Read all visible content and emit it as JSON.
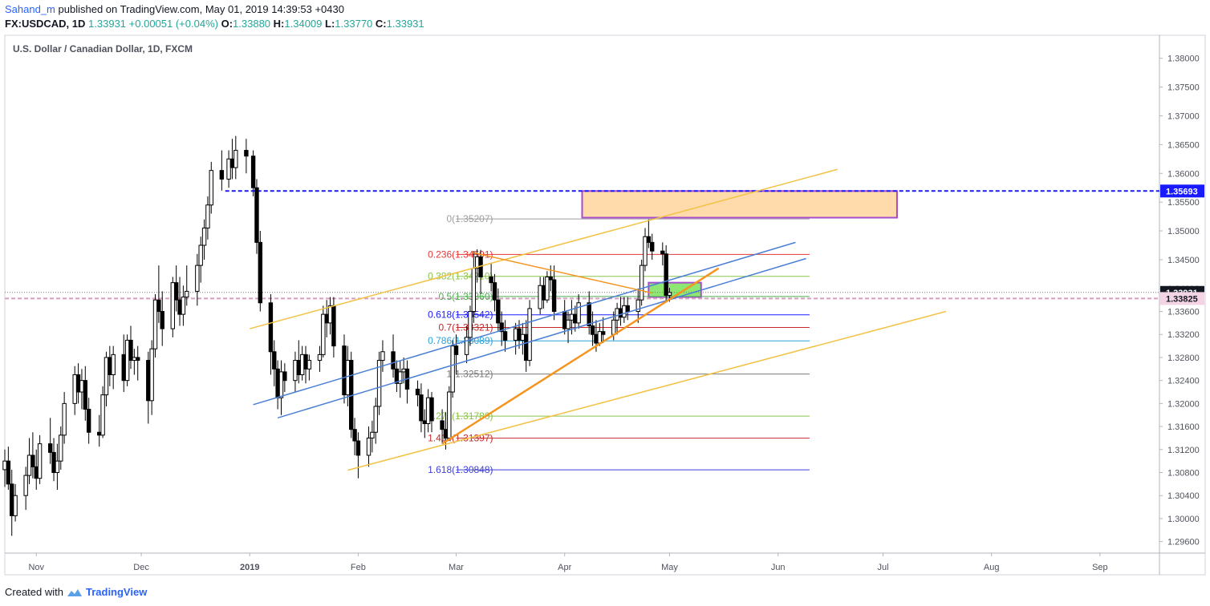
{
  "header": {
    "author": "Sahand_m",
    "published_text": "published on TradingView.com, May 01, 2019 14:39:53 +0430",
    "symbol": "FX:USDCAD, 1D",
    "last": "1.33931",
    "change": "+0.00051 (+0.04%)",
    "o_label": "O:",
    "o": "1.33880",
    "h_label": "H:",
    "h": "1.34009",
    "l_label": "L:",
    "l": "1.33770",
    "c_label": "C:",
    "c": "1.33931"
  },
  "footer": {
    "created_with": "Created with",
    "brand": "TradingView"
  },
  "colors": {
    "up_body": "#ffffff",
    "down_body": "#000000",
    "wick": "#000000",
    "resistance_zone": "#ffd49c",
    "zone_border": "#a64dcc",
    "support_zone": "#7be35a",
    "dashed_blue": "#1a1aff",
    "dashed_pink": "#d6a0c0",
    "channel_blue": "#4a7fd6",
    "channel_yellow": "#f2c244",
    "trend_orange": "#f5941f"
  },
  "chart_data": {
    "type": "candlestick",
    "title": "U.S. Dollar / Canadian Dollar, 1D, FXCM",
    "ylim": [
      1.294,
      1.384
    ],
    "y_ticks": [
      "1.29600",
      "1.30000",
      "1.30400",
      "1.30800",
      "1.31200",
      "1.31600",
      "1.32000",
      "1.32400",
      "1.32800",
      "1.33200",
      "1.33600",
      "1.34000",
      "1.34500",
      "1.35000",
      "1.35500",
      "1.36000",
      "1.36500",
      "1.37000",
      "1.37500",
      "1.38000"
    ],
    "y_tick_values": [
      1.296,
      1.3,
      1.304,
      1.308,
      1.312,
      1.316,
      1.32,
      1.324,
      1.328,
      1.332,
      1.336,
      1.34,
      1.345,
      1.35,
      1.355,
      1.36,
      1.365,
      1.37,
      1.375,
      1.38
    ],
    "x_ticks": [
      {
        "label": "Nov",
        "date": "2018-11-01"
      },
      {
        "label": "Dec",
        "date": "2018-12-01"
      },
      {
        "label": "2019",
        "date": "2019-01-01"
      },
      {
        "label": "Feb",
        "date": "2019-02-01"
      },
      {
        "label": "Mar",
        "date": "2019-03-01"
      },
      {
        "label": "Apr",
        "date": "2019-04-01"
      },
      {
        "label": "May",
        "date": "2019-05-01"
      },
      {
        "label": "Jun",
        "date": "2019-06-01"
      },
      {
        "label": "Jul",
        "date": "2019-07-01"
      },
      {
        "label": "Aug",
        "date": "2019-08-01"
      },
      {
        "label": "Sep",
        "date": "2019-09-01"
      }
    ],
    "x_range": [
      "2018-10-23",
      "2019-09-18"
    ],
    "price_labels": [
      {
        "value": 1.35693,
        "text": "1.35693",
        "bg": "#1a1aff",
        "fg": "#ffffff"
      },
      {
        "value": 1.33931,
        "text": "1.33931",
        "bg": "#131722",
        "fg": "#ffffff"
      },
      {
        "value": 1.33825,
        "text": "1.33825",
        "bg": "#f3d4e4",
        "fg": "#131722"
      }
    ],
    "hlines": [
      {
        "value": 1.35693,
        "style": "dashed",
        "color": "#1a1aff",
        "from": "2018-12-25"
      },
      {
        "value": 1.33825,
        "style": "dashed",
        "color": "#d6a0c0",
        "from": "2018-10-23"
      },
      {
        "value": 1.33931,
        "style": "dotted",
        "color": "#777777",
        "from": "2018-10-23"
      }
    ],
    "fib": {
      "from": "2019-03-01",
      "to": "2019-06-10",
      "levels": [
        {
          "ratio": "0",
          "value": 1.35207,
          "text": "0(1.35207)",
          "color": "#9e9e9e"
        },
        {
          "ratio": "0.236",
          "value": 1.34591,
          "text": "0.236(1.34591)",
          "color": "#e53935"
        },
        {
          "ratio": "0.382",
          "value": 1.3421,
          "text": "0.382(1.34210)",
          "color": "#8bc34a"
        },
        {
          "ratio": "0.5",
          "value": 1.3386,
          "text": "0.5(1.33860)",
          "color": "#4caf50"
        },
        {
          "ratio": "0.618",
          "value": 1.33542,
          "text": "0.618(1.33542)",
          "color": "#1a1aff"
        },
        {
          "ratio": "0.7",
          "value": 1.33321,
          "text": "0.7(1.33321)",
          "color": "#c62828"
        },
        {
          "ratio": "0.786",
          "value": 1.33089,
          "text": "0.786(1.33089)",
          "color": "#29a3d6"
        },
        {
          "ratio": "1",
          "value": 1.32512,
          "text": "1(1.32512)",
          "color": "#7a7a7a"
        },
        {
          "ratio": "1.272",
          "value": 1.3178,
          "text": "1.272(1.31780)",
          "color": "#8bc34a"
        },
        {
          "ratio": "1.414",
          "value": 1.31397,
          "text": "1.414(1.31397)",
          "color": "#c62828"
        },
        {
          "ratio": "1.618",
          "value": 1.30848,
          "text": "1.618(1.30848)",
          "color": "#3f3fd6"
        }
      ]
    },
    "zones": [
      {
        "name": "resistance",
        "x0": "2019-04-06",
        "x1": "2019-07-05",
        "y0": 1.3523,
        "y1": 1.35693,
        "fill": "#ffd49c",
        "border": "#a64dcc"
      },
      {
        "name": "support",
        "x0": "2019-04-25",
        "x1": "2019-05-10",
        "y0": 1.3385,
        "y1": 1.341,
        "fill": "#7be35a",
        "border": "#a64dcc"
      }
    ],
    "trendlines": [
      {
        "color": "#f2c244",
        "width": 1.5,
        "p1": [
          "2019-01-01",
          1.333
        ],
        "p2": [
          "2019-06-18",
          1.3607
        ]
      },
      {
        "color": "#f2c244",
        "width": 1.5,
        "p1": [
          "2019-01-29",
          1.3084
        ],
        "p2": [
          "2019-07-19",
          1.336
        ]
      },
      {
        "color": "#4a7fd6",
        "width": 1.5,
        "p1": [
          "2019-01-02",
          1.3198
        ],
        "p2": [
          "2019-06-06",
          1.348
        ]
      },
      {
        "color": "#4a7fd6",
        "width": 1.5,
        "p1": [
          "2019-01-09",
          1.3175
        ],
        "p2": [
          "2019-06-09",
          1.3452
        ]
      },
      {
        "color": "#f5941f",
        "width": 2.5,
        "p1": [
          "2019-02-25",
          1.313
        ],
        "p2": [
          "2019-05-15",
          1.3435
        ]
      },
      {
        "color": "#f5941f",
        "width": 1.5,
        "p1": [
          "2019-03-06",
          1.3462
        ],
        "p2": [
          "2019-04-26",
          1.3392
        ]
      }
    ],
    "candles": [
      [
        "2018-10-23",
        1.3085,
        1.312,
        1.3055,
        1.31
      ],
      [
        "2018-10-24",
        1.31,
        1.3125,
        1.305,
        1.306
      ],
      [
        "2018-10-25",
        1.306,
        1.3085,
        1.297,
        1.3005
      ],
      [
        "2018-10-26",
        1.3005,
        1.306,
        1.2995,
        1.304
      ],
      [
        "2018-10-29",
        1.304,
        1.309,
        1.3015,
        1.3075
      ],
      [
        "2018-10-30",
        1.3075,
        1.314,
        1.306,
        1.311
      ],
      [
        "2018-10-31",
        1.311,
        1.315,
        1.307,
        1.309
      ],
      [
        "2018-11-01",
        1.309,
        1.312,
        1.305,
        1.307
      ],
      [
        "2018-11-02",
        1.307,
        1.3145,
        1.306,
        1.313
      ],
      [
        "2018-11-05",
        1.313,
        1.3175,
        1.3095,
        1.3115
      ],
      [
        "2018-11-06",
        1.3115,
        1.314,
        1.3065,
        1.308
      ],
      [
        "2018-11-07",
        1.308,
        1.313,
        1.305,
        1.31
      ],
      [
        "2018-11-08",
        1.31,
        1.316,
        1.3085,
        1.3145
      ],
      [
        "2018-11-09",
        1.3145,
        1.322,
        1.313,
        1.32
      ],
      [
        "2018-11-12",
        1.32,
        1.3265,
        1.318,
        1.325
      ],
      [
        "2018-11-13",
        1.325,
        1.327,
        1.32,
        1.322
      ],
      [
        "2018-11-14",
        1.322,
        1.326,
        1.319,
        1.324
      ],
      [
        "2018-11-15",
        1.324,
        1.3265,
        1.317,
        1.319
      ],
      [
        "2018-11-16",
        1.319,
        1.321,
        1.313,
        1.315
      ],
      [
        "2018-11-19",
        1.315,
        1.318,
        1.3125,
        1.3145
      ],
      [
        "2018-11-20",
        1.3145,
        1.323,
        1.314,
        1.3215
      ],
      [
        "2018-11-21",
        1.3215,
        1.329,
        1.3195,
        1.328
      ],
      [
        "2018-11-22",
        1.328,
        1.33,
        1.323,
        1.325
      ],
      [
        "2018-11-23",
        1.325,
        1.33,
        1.3225,
        1.3285
      ],
      [
        "2018-11-26",
        1.3285,
        1.332,
        1.322,
        1.324
      ],
      [
        "2018-11-27",
        1.324,
        1.332,
        1.323,
        1.331
      ],
      [
        "2018-11-28",
        1.331,
        1.3335,
        1.326,
        1.3275
      ],
      [
        "2018-11-29",
        1.3275,
        1.3295,
        1.325,
        1.328
      ],
      [
        "2018-11-30",
        1.328,
        1.33,
        1.324,
        1.3275
      ],
      [
        "2018-12-03",
        1.3275,
        1.329,
        1.3165,
        1.3205
      ],
      [
        "2018-12-04",
        1.3205,
        1.331,
        1.318,
        1.3295
      ],
      [
        "2018-12-05",
        1.3295,
        1.339,
        1.328,
        1.338
      ],
      [
        "2018-12-06",
        1.338,
        1.344,
        1.334,
        1.336
      ],
      [
        "2018-12-07",
        1.336,
        1.3395,
        1.33,
        1.333
      ],
      [
        "2018-12-10",
        1.333,
        1.342,
        1.3315,
        1.341
      ],
      [
        "2018-12-11",
        1.341,
        1.344,
        1.336,
        1.338
      ],
      [
        "2018-12-12",
        1.338,
        1.342,
        1.3335,
        1.3355
      ],
      [
        "2018-12-13",
        1.3355,
        1.3405,
        1.3335,
        1.3385
      ],
      [
        "2018-12-14",
        1.3385,
        1.344,
        1.337,
        1.3395
      ],
      [
        "2018-12-17",
        1.3395,
        1.346,
        1.337,
        1.344
      ],
      [
        "2018-12-18",
        1.344,
        1.349,
        1.341,
        1.3475
      ],
      [
        "2018-12-19",
        1.3475,
        1.352,
        1.345,
        1.3505
      ],
      [
        "2018-12-20",
        1.3505,
        1.356,
        1.3485,
        1.3545
      ],
      [
        "2018-12-21",
        1.3545,
        1.362,
        1.353,
        1.3605
      ],
      [
        "2018-12-24",
        1.3605,
        1.364,
        1.357,
        1.359
      ],
      [
        "2018-12-26",
        1.359,
        1.364,
        1.3575,
        1.3625
      ],
      [
        "2018-12-27",
        1.3625,
        1.366,
        1.359,
        1.361
      ],
      [
        "2018-12-28",
        1.361,
        1.3665,
        1.359,
        1.364
      ],
      [
        "2018-12-31",
        1.364,
        1.366,
        1.36,
        1.363
      ],
      [
        "2019-01-02",
        1.363,
        1.364,
        1.356,
        1.3575
      ],
      [
        "2019-01-03",
        1.3575,
        1.359,
        1.346,
        1.348
      ],
      [
        "2019-01-04",
        1.348,
        1.35,
        1.336,
        1.3375
      ],
      [
        "2019-01-07",
        1.3375,
        1.339,
        1.325,
        1.329
      ],
      [
        "2019-01-08",
        1.329,
        1.331,
        1.323,
        1.326
      ],
      [
        "2019-01-09",
        1.326,
        1.3275,
        1.319,
        1.321
      ],
      [
        "2019-01-10",
        1.321,
        1.3275,
        1.318,
        1.3255
      ],
      [
        "2019-01-11",
        1.3255,
        1.327,
        1.322,
        1.324
      ],
      [
        "2019-01-14",
        1.324,
        1.329,
        1.322,
        1.3275
      ],
      [
        "2019-01-15",
        1.3275,
        1.331,
        1.3235,
        1.325
      ],
      [
        "2019-01-16",
        1.325,
        1.33,
        1.324,
        1.3285
      ],
      [
        "2019-01-17",
        1.3285,
        1.33,
        1.3235,
        1.326
      ],
      [
        "2019-01-18",
        1.326,
        1.3285,
        1.324,
        1.3275
      ],
      [
        "2019-01-21",
        1.3275,
        1.33,
        1.3255,
        1.3285
      ],
      [
        "2019-01-22",
        1.3285,
        1.337,
        1.328,
        1.3355
      ],
      [
        "2019-01-23",
        1.3355,
        1.338,
        1.3315,
        1.334
      ],
      [
        "2019-01-24",
        1.334,
        1.3385,
        1.332,
        1.337
      ],
      [
        "2019-01-25",
        1.337,
        1.3385,
        1.328,
        1.33
      ],
      [
        "2019-01-28",
        1.33,
        1.332,
        1.32,
        1.3215
      ],
      [
        "2019-01-29",
        1.3215,
        1.33,
        1.3195,
        1.3275
      ],
      [
        "2019-01-30",
        1.3275,
        1.329,
        1.314,
        1.3155
      ],
      [
        "2019-01-31",
        1.3155,
        1.3175,
        1.311,
        1.3135
      ],
      [
        "2019-02-01",
        1.3135,
        1.315,
        1.307,
        1.311
      ],
      [
        "2019-02-04",
        1.311,
        1.316,
        1.309,
        1.314
      ],
      [
        "2019-02-05",
        1.314,
        1.317,
        1.3115,
        1.315
      ],
      [
        "2019-02-06",
        1.315,
        1.321,
        1.313,
        1.3195
      ],
      [
        "2019-02-07",
        1.3195,
        1.329,
        1.318,
        1.3275
      ],
      [
        "2019-02-08",
        1.3275,
        1.331,
        1.3255,
        1.329
      ],
      [
        "2019-02-11",
        1.329,
        1.332,
        1.3245,
        1.326
      ],
      [
        "2019-02-12",
        1.326,
        1.3275,
        1.322,
        1.3235
      ],
      [
        "2019-02-13",
        1.3235,
        1.3275,
        1.321,
        1.3255
      ],
      [
        "2019-02-14",
        1.3255,
        1.328,
        1.3235,
        1.326
      ],
      [
        "2019-02-15",
        1.326,
        1.3275,
        1.32,
        1.3225
      ],
      [
        "2019-02-18",
        1.3225,
        1.324,
        1.3195,
        1.3215
      ],
      [
        "2019-02-19",
        1.3215,
        1.3235,
        1.315,
        1.317
      ],
      [
        "2019-02-20",
        1.317,
        1.319,
        1.314,
        1.3165
      ],
      [
        "2019-02-21",
        1.3165,
        1.3225,
        1.315,
        1.321
      ],
      [
        "2019-02-22",
        1.321,
        1.322,
        1.315,
        1.317
      ],
      [
        "2019-02-25",
        1.317,
        1.319,
        1.313,
        1.3155
      ],
      [
        "2019-02-26",
        1.3155,
        1.3185,
        1.312,
        1.314
      ],
      [
        "2019-02-27",
        1.314,
        1.323,
        1.3135,
        1.322
      ],
      [
        "2019-02-28",
        1.322,
        1.331,
        1.321,
        1.33
      ],
      [
        "2019-03-01",
        1.33,
        1.332,
        1.325,
        1.3285
      ],
      [
        "2019-03-04",
        1.3285,
        1.3335,
        1.327,
        1.3315
      ],
      [
        "2019-03-05",
        1.3315,
        1.337,
        1.33,
        1.336
      ],
      [
        "2019-03-06",
        1.336,
        1.3465,
        1.334,
        1.3435
      ],
      [
        "2019-03-07",
        1.3435,
        1.3468,
        1.341,
        1.3455
      ],
      [
        "2019-03-08",
        1.3455,
        1.3467,
        1.339,
        1.342
      ],
      [
        "2019-03-11",
        1.342,
        1.3445,
        1.3395,
        1.341
      ],
      [
        "2019-03-12",
        1.341,
        1.3425,
        1.336,
        1.338
      ],
      [
        "2019-03-13",
        1.338,
        1.34,
        1.3325,
        1.334
      ],
      [
        "2019-03-14",
        1.334,
        1.336,
        1.33,
        1.3325
      ],
      [
        "2019-03-15",
        1.3325,
        1.3345,
        1.329,
        1.331
      ],
      [
        "2019-03-18",
        1.331,
        1.334,
        1.3285,
        1.333
      ],
      [
        "2019-03-19",
        1.333,
        1.3345,
        1.3295,
        1.331
      ],
      [
        "2019-03-20",
        1.331,
        1.334,
        1.3285,
        1.332
      ],
      [
        "2019-03-21",
        1.332,
        1.3345,
        1.3255,
        1.3275
      ],
      [
        "2019-03-22",
        1.3275,
        1.338,
        1.3265,
        1.3365
      ],
      [
        "2019-03-25",
        1.3365,
        1.342,
        1.3355,
        1.3405
      ],
      [
        "2019-03-26",
        1.3405,
        1.342,
        1.3365,
        1.338
      ],
      [
        "2019-03-27",
        1.338,
        1.343,
        1.3375,
        1.342
      ],
      [
        "2019-03-28",
        1.342,
        1.344,
        1.3395,
        1.3415
      ],
      [
        "2019-03-29",
        1.3415,
        1.344,
        1.3345,
        1.336
      ],
      [
        "2019-04-01",
        1.336,
        1.338,
        1.332,
        1.333
      ],
      [
        "2019-04-02",
        1.333,
        1.336,
        1.3305,
        1.3345
      ],
      [
        "2019-04-03",
        1.3345,
        1.338,
        1.332,
        1.3355
      ],
      [
        "2019-04-04",
        1.3355,
        1.337,
        1.3325,
        1.334
      ],
      [
        "2019-04-05",
        1.334,
        1.339,
        1.333,
        1.3375
      ],
      [
        "2019-04-08",
        1.3375,
        1.3395,
        1.332,
        1.3335
      ],
      [
        "2019-04-09",
        1.3335,
        1.336,
        1.33,
        1.332
      ],
      [
        "2019-04-10",
        1.332,
        1.3345,
        1.329,
        1.3305
      ],
      [
        "2019-04-11",
        1.3305,
        1.334,
        1.33,
        1.3325
      ],
      [
        "2019-04-12",
        1.3325,
        1.335,
        1.3305,
        1.332
      ],
      [
        "2019-04-15",
        1.332,
        1.336,
        1.331,
        1.3345
      ],
      [
        "2019-04-16",
        1.3345,
        1.3375,
        1.332,
        1.3365
      ],
      [
        "2019-04-17",
        1.3365,
        1.3385,
        1.3335,
        1.335
      ],
      [
        "2019-04-18",
        1.335,
        1.3385,
        1.334,
        1.337
      ],
      [
        "2019-04-19",
        1.337,
        1.3385,
        1.3345,
        1.336
      ],
      [
        "2019-04-22",
        1.336,
        1.34,
        1.334,
        1.338
      ],
      [
        "2019-04-23",
        1.338,
        1.345,
        1.337,
        1.344
      ],
      [
        "2019-04-24",
        1.344,
        1.3505,
        1.343,
        1.349
      ],
      [
        "2019-04-25",
        1.349,
        1.352,
        1.347,
        1.348
      ],
      [
        "2019-04-26",
        1.348,
        1.3495,
        1.345,
        1.3465
      ],
      [
        "2019-04-29",
        1.3465,
        1.348,
        1.344,
        1.346
      ],
      [
        "2019-04-30",
        1.346,
        1.3475,
        1.3377,
        1.3388
      ],
      [
        "2019-05-01",
        1.3388,
        1.3401,
        1.3377,
        1.3393
      ]
    ]
  }
}
